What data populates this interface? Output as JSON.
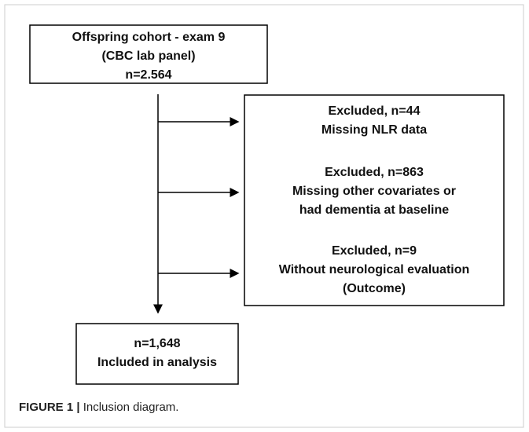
{
  "nodes": [
    {
      "lines": [
        "Offspring cohort - exam 9",
        "(CBC lab panel)",
        "n=2.564"
      ]
    },
    {
      "lines": [
        "Excluded, n=44",
        "Missing NLR data"
      ]
    },
    {
      "lines": [
        "Excluded, n=863",
        "Missing other covariates or",
        "had dementia at baseline"
      ]
    },
    {
      "lines": [
        "Excluded, n=9",
        "Without neurological evaluation",
        "(Outcome)"
      ]
    },
    {
      "lines": [
        "n=1,648",
        "Included in analysis"
      ]
    }
  ],
  "caption": {
    "label": "FIGURE 1 |",
    "text": "Inclusion diagram."
  }
}
